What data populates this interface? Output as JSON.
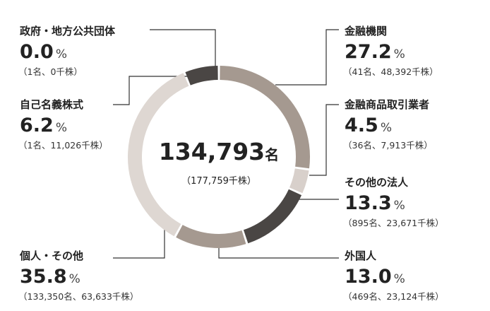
{
  "chart_data": {
    "type": "pie",
    "donut": true,
    "categories": [
      "政府・地方公共団体",
      "金融機関",
      "金融商品取引業者",
      "その他の法人",
      "外国人",
      "個人・その他",
      "自己名義株式"
    ],
    "values": [
      0.0,
      27.2,
      4.5,
      13.3,
      13.0,
      35.8,
      6.2
    ],
    "value_labels": [
      "0.0",
      "27.2",
      "4.5",
      "13.3",
      "13.0",
      "35.8",
      "6.2"
    ],
    "unit": "%",
    "details": [
      "（1名、0千株）",
      "（41名、48,392千株）",
      "（36名、7,913千株）",
      "（895名、23,671千株）",
      "（469名、23,124千株）",
      "（133,350名、63,633千株）",
      "（1名、11,026千株）"
    ],
    "colors": [
      "#f2efed",
      "#a59990",
      "#d8d0cb",
      "#4a4644",
      "#a59990",
      "#ded7d2",
      "#4a4644"
    ],
    "center": {
      "label": "134,793",
      "unit": "名",
      "sub": "（177,759千株）"
    }
  }
}
